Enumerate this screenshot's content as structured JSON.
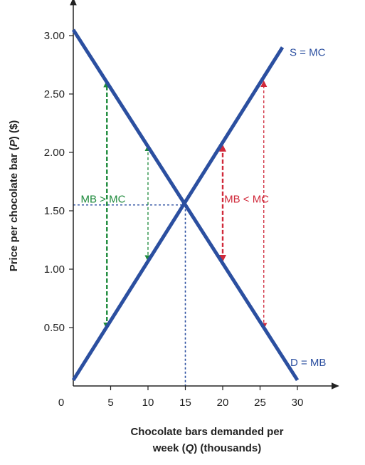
{
  "chart_data": {
    "type": "line",
    "xlabel_line1": "Chocolate bars demanded per",
    "xlabel_line2_prefix": "week (",
    "xlabel_line2_var": "Q",
    "xlabel_line2_suffix": ") (thousands)",
    "ylabel_prefix": "Price per chocolate bar (",
    "ylabel_var": "P",
    "ylabel_suffix": ") ($)",
    "origin_label": "0",
    "xlim": [
      0,
      35
    ],
    "ylim": [
      0,
      3.3
    ],
    "x_ticks": [
      5,
      10,
      15,
      20,
      25,
      30
    ],
    "y_ticks": [
      0.5,
      1.0,
      1.5,
      2.0,
      2.5,
      3.0
    ],
    "y_tick_labels": [
      "0.50",
      "1.00",
      "1.50",
      "2.00",
      "2.50",
      "3.00"
    ],
    "series": [
      {
        "name": "S = MC",
        "color": "#2b4fa0",
        "x": [
          0,
          28
        ],
        "y": [
          0.05,
          2.9
        ]
      },
      {
        "name": "D = MB",
        "color": "#2b4fa0",
        "x": [
          0,
          30
        ],
        "y": [
          3.05,
          0.05
        ]
      }
    ],
    "equilibrium": {
      "x": 15,
      "y": 1.55,
      "color": "#2b4fa0"
    },
    "annotations": [
      {
        "text": "MB > MC",
        "color": "#1e8a3c",
        "x": 1,
        "y": 1.6
      },
      {
        "text": "MB < MC",
        "color": "#d0293a",
        "x": 20.2,
        "y": 1.6
      }
    ],
    "gap_arrows": [
      {
        "x": 4.5,
        "y_low": 0.5,
        "y_high": 2.6,
        "color": "#1e8a3c",
        "weight": "bold"
      },
      {
        "x": 10,
        "y_low": 1.08,
        "y_high": 2.05,
        "color": "#1e8a3c",
        "weight": "thin"
      },
      {
        "x": 20,
        "y_low": 1.08,
        "y_high": 2.05,
        "color": "#d0293a",
        "weight": "bold"
      },
      {
        "x": 25.5,
        "y_low": 0.5,
        "y_high": 2.6,
        "color": "#d0293a",
        "weight": "thin"
      }
    ]
  }
}
